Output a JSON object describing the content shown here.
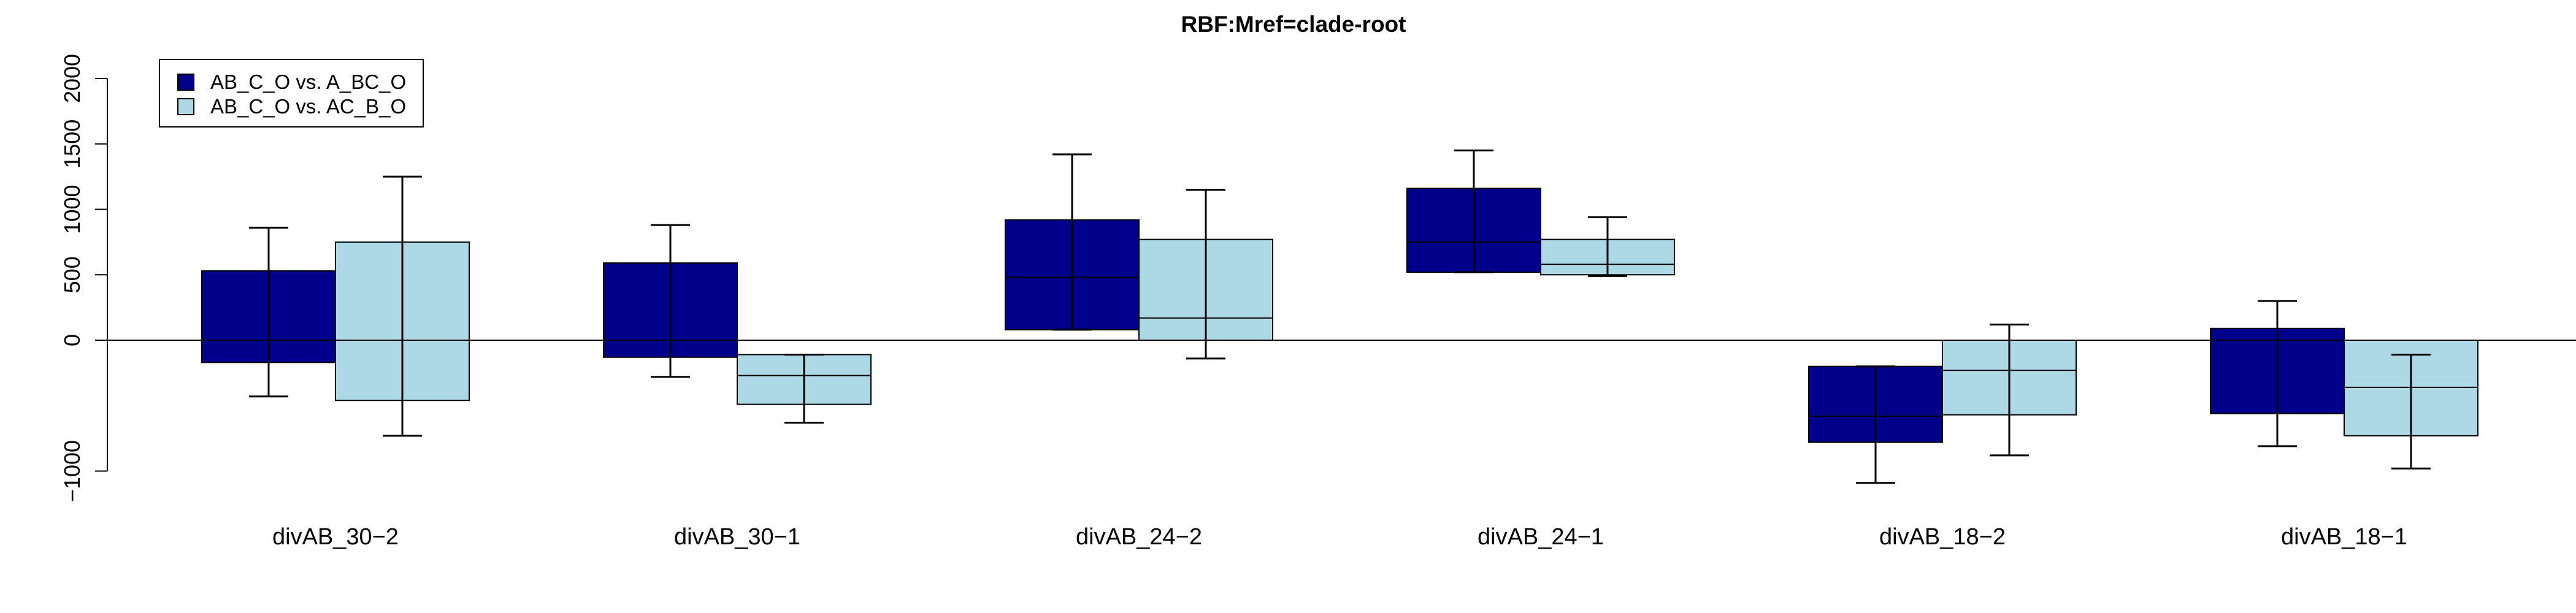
{
  "chart_data": {
    "type": "bar",
    "title": "RBF:Mref=clade-root",
    "xlabel": "",
    "ylabel": "",
    "ylim": [
      -1000,
      2000
    ],
    "yticks": [
      -1000,
      0,
      500,
      1000,
      1500,
      2000
    ],
    "ytick_labels": [
      "−1000",
      "0",
      "500",
      "1000",
      "1500",
      "2000"
    ],
    "categories": [
      "divAB_30−2",
      "divAB_30−1",
      "divAB_24−2",
      "divAB_24−1",
      "divAB_18−2",
      "divAB_18−1"
    ],
    "series": [
      {
        "name": "AB_C_O vs. A_BC_O",
        "color": "#00008B",
        "values": [
          530,
          590,
          920,
          1160,
          -780,
          90
        ],
        "median": [
          0,
          0,
          480,
          750,
          -580,
          0
        ],
        "lower": [
          -170,
          -130,
          80,
          520,
          -780,
          -560
        ],
        "upper": [
          530,
          590,
          920,
          1160,
          -200,
          90
        ],
        "whisker_low": [
          -430,
          -280,
          80,
          520,
          -1090,
          -810
        ],
        "whisker_high": [
          860,
          880,
          1420,
          1450,
          -200,
          300
        ]
      },
      {
        "name": "AB_C_O vs. AC_B_O",
        "color": "#ADD8E6",
        "values": [
          750,
          -490,
          770,
          770,
          -570,
          -730
        ],
        "median": [
          0,
          -270,
          170,
          580,
          -230,
          -360
        ],
        "lower": [
          -460,
          -490,
          0,
          500,
          -570,
          -730
        ],
        "upper": [
          750,
          -110,
          770,
          770,
          0,
          0
        ],
        "whisker_low": [
          -730,
          -630,
          -140,
          490,
          -880,
          -980
        ],
        "whisker_high": [
          1250,
          -110,
          1150,
          940,
          120,
          -110
        ]
      }
    ],
    "legend_position": "top-left",
    "grid": false
  }
}
